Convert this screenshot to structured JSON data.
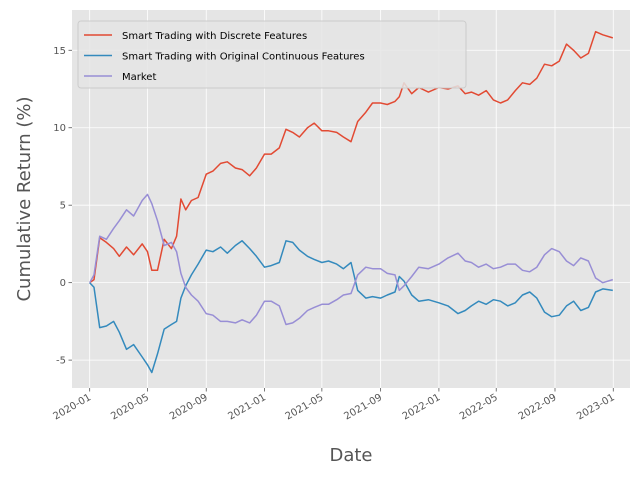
{
  "chart_data": {
    "type": "line",
    "title": "",
    "xlabel": "Date",
    "ylabel": "Cumulative Return (%)",
    "xlim": [
      "2019-11-25",
      "2023-02-05"
    ],
    "ylim": [
      -6.8,
      17.6
    ],
    "grid": true,
    "legend_position": "upper-left",
    "x_ticks": [
      "2020-01",
      "2020-05",
      "2020-09",
      "2021-01",
      "2021-05",
      "2021-09",
      "2022-01",
      "2022-05",
      "2022-09",
      "2023-01"
    ],
    "y_ticks": [
      -5,
      0,
      5,
      10,
      15
    ],
    "colors": {
      "background": "#e5e5e5",
      "grid": "#ffffff"
    },
    "series": [
      {
        "name": "Smart Trading with Discrete Features",
        "color": "#e24a33",
        "points": [
          [
            "2020-01-01",
            0
          ],
          [
            "2020-01-10",
            0.2
          ],
          [
            "2020-01-22",
            2.9
          ],
          [
            "2020-02-05",
            2.6
          ],
          [
            "2020-02-20",
            2.2
          ],
          [
            "2020-03-03",
            1.7
          ],
          [
            "2020-03-18",
            2.3
          ],
          [
            "2020-04-02",
            1.8
          ],
          [
            "2020-04-20",
            2.5
          ],
          [
            "2020-05-01",
            2.0
          ],
          [
            "2020-05-10",
            0.8
          ],
          [
            "2020-05-22",
            0.8
          ],
          [
            "2020-06-05",
            2.8
          ],
          [
            "2020-06-20",
            2.2
          ],
          [
            "2020-07-01",
            3.0
          ],
          [
            "2020-07-10",
            5.4
          ],
          [
            "2020-07-20",
            4.7
          ],
          [
            "2020-08-01",
            5.3
          ],
          [
            "2020-08-15",
            5.5
          ],
          [
            "2020-09-01",
            7.0
          ],
          [
            "2020-09-15",
            7.2
          ],
          [
            "2020-10-01",
            7.7
          ],
          [
            "2020-10-15",
            7.8
          ],
          [
            "2020-11-01",
            7.4
          ],
          [
            "2020-11-15",
            7.3
          ],
          [
            "2020-12-01",
            6.9
          ],
          [
            "2020-12-15",
            7.4
          ],
          [
            "2021-01-01",
            8.3
          ],
          [
            "2021-01-15",
            8.3
          ],
          [
            "2021-02-01",
            8.7
          ],
          [
            "2021-02-15",
            9.9
          ],
          [
            "2021-03-01",
            9.7
          ],
          [
            "2021-03-15",
            9.4
          ],
          [
            "2021-04-01",
            10.0
          ],
          [
            "2021-04-15",
            10.3
          ],
          [
            "2021-05-01",
            9.8
          ],
          [
            "2021-05-15",
            9.8
          ],
          [
            "2021-06-01",
            9.7
          ],
          [
            "2021-06-15",
            9.4
          ],
          [
            "2021-07-01",
            9.1
          ],
          [
            "2021-07-15",
            10.4
          ],
          [
            "2021-08-01",
            11.0
          ],
          [
            "2021-08-15",
            11.6
          ],
          [
            "2021-09-01",
            11.6
          ],
          [
            "2021-09-15",
            11.5
          ],
          [
            "2021-10-01",
            11.7
          ],
          [
            "2021-10-10",
            12.0
          ],
          [
            "2021-10-20",
            12.9
          ],
          [
            "2021-11-05",
            12.2
          ],
          [
            "2021-11-20",
            12.6
          ],
          [
            "2021-12-10",
            12.3
          ],
          [
            "2022-01-01",
            12.6
          ],
          [
            "2022-01-20",
            12.5
          ],
          [
            "2022-02-10",
            12.7
          ],
          [
            "2022-02-25",
            12.2
          ],
          [
            "2022-03-10",
            12.3
          ],
          [
            "2022-03-25",
            12.1
          ],
          [
            "2022-04-10",
            12.4
          ],
          [
            "2022-04-25",
            11.8
          ],
          [
            "2022-05-10",
            11.6
          ],
          [
            "2022-05-25",
            11.8
          ],
          [
            "2022-06-10",
            12.4
          ],
          [
            "2022-06-25",
            12.9
          ],
          [
            "2022-07-10",
            12.8
          ],
          [
            "2022-07-25",
            13.2
          ],
          [
            "2022-08-10",
            14.1
          ],
          [
            "2022-08-25",
            14.0
          ],
          [
            "2022-09-10",
            14.3
          ],
          [
            "2022-09-25",
            15.4
          ],
          [
            "2022-10-10",
            15.0
          ],
          [
            "2022-10-25",
            14.5
          ],
          [
            "2022-11-10",
            14.8
          ],
          [
            "2022-11-25",
            16.2
          ],
          [
            "2022-12-10",
            16.0
          ],
          [
            "2022-12-31",
            15.8
          ]
        ]
      },
      {
        "name": "Smart Trading with Original Continuous Features",
        "color": "#348abd",
        "points": [
          [
            "2020-01-01",
            0
          ],
          [
            "2020-01-10",
            -0.3
          ],
          [
            "2020-01-22",
            -2.9
          ],
          [
            "2020-02-05",
            -2.8
          ],
          [
            "2020-02-20",
            -2.5
          ],
          [
            "2020-03-03",
            -3.2
          ],
          [
            "2020-03-18",
            -4.3
          ],
          [
            "2020-04-02",
            -4.0
          ],
          [
            "2020-04-20",
            -4.8
          ],
          [
            "2020-05-01",
            -5.3
          ],
          [
            "2020-05-10",
            -5.8
          ],
          [
            "2020-05-22",
            -4.6
          ],
          [
            "2020-06-05",
            -3.0
          ],
          [
            "2020-06-20",
            -2.7
          ],
          [
            "2020-07-01",
            -2.5
          ],
          [
            "2020-07-10",
            -1.0
          ],
          [
            "2020-07-20",
            -0.2
          ],
          [
            "2020-08-01",
            0.5
          ],
          [
            "2020-08-15",
            1.2
          ],
          [
            "2020-09-01",
            2.1
          ],
          [
            "2020-09-15",
            2.0
          ],
          [
            "2020-10-01",
            2.3
          ],
          [
            "2020-10-15",
            1.9
          ],
          [
            "2020-11-01",
            2.4
          ],
          [
            "2020-11-15",
            2.7
          ],
          [
            "2020-12-01",
            2.2
          ],
          [
            "2020-12-15",
            1.7
          ],
          [
            "2021-01-01",
            1.0
          ],
          [
            "2021-01-15",
            1.1
          ],
          [
            "2021-02-01",
            1.3
          ],
          [
            "2021-02-15",
            2.7
          ],
          [
            "2021-03-01",
            2.6
          ],
          [
            "2021-03-15",
            2.1
          ],
          [
            "2021-04-01",
            1.7
          ],
          [
            "2021-04-15",
            1.5
          ],
          [
            "2021-05-01",
            1.3
          ],
          [
            "2021-05-15",
            1.4
          ],
          [
            "2021-06-01",
            1.2
          ],
          [
            "2021-06-15",
            0.9
          ],
          [
            "2021-07-01",
            1.3
          ],
          [
            "2021-07-15",
            -0.5
          ],
          [
            "2021-08-01",
            -1.0
          ],
          [
            "2021-08-15",
            -0.9
          ],
          [
            "2021-09-01",
            -1.0
          ],
          [
            "2021-09-15",
            -0.8
          ],
          [
            "2021-10-01",
            -0.6
          ],
          [
            "2021-10-10",
            0.4
          ],
          [
            "2021-10-20",
            0.1
          ],
          [
            "2021-11-05",
            -0.8
          ],
          [
            "2021-11-20",
            -1.2
          ],
          [
            "2021-12-10",
            -1.1
          ],
          [
            "2022-01-01",
            -1.3
          ],
          [
            "2022-01-20",
            -1.5
          ],
          [
            "2022-02-10",
            -2.0
          ],
          [
            "2022-02-25",
            -1.8
          ],
          [
            "2022-03-10",
            -1.5
          ],
          [
            "2022-03-25",
            -1.2
          ],
          [
            "2022-04-10",
            -1.4
          ],
          [
            "2022-04-25",
            -1.1
          ],
          [
            "2022-05-10",
            -1.2
          ],
          [
            "2022-05-25",
            -1.5
          ],
          [
            "2022-06-10",
            -1.3
          ],
          [
            "2022-06-25",
            -0.8
          ],
          [
            "2022-07-10",
            -0.6
          ],
          [
            "2022-07-25",
            -1.0
          ],
          [
            "2022-08-10",
            -1.9
          ],
          [
            "2022-08-25",
            -2.2
          ],
          [
            "2022-09-10",
            -2.1
          ],
          [
            "2022-09-25",
            -1.5
          ],
          [
            "2022-10-10",
            -1.2
          ],
          [
            "2022-10-25",
            -1.8
          ],
          [
            "2022-11-10",
            -1.6
          ],
          [
            "2022-11-25",
            -0.6
          ],
          [
            "2022-12-10",
            -0.4
          ],
          [
            "2022-12-31",
            -0.5
          ]
        ]
      },
      {
        "name": "Market",
        "color": "#988ed5",
        "points": [
          [
            "2020-01-01",
            0
          ],
          [
            "2020-01-10",
            0.5
          ],
          [
            "2020-01-22",
            3.0
          ],
          [
            "2020-02-05",
            2.8
          ],
          [
            "2020-02-20",
            3.5
          ],
          [
            "2020-03-03",
            4.0
          ],
          [
            "2020-03-18",
            4.7
          ],
          [
            "2020-04-02",
            4.3
          ],
          [
            "2020-04-20",
            5.3
          ],
          [
            "2020-05-01",
            5.7
          ],
          [
            "2020-05-10",
            5.1
          ],
          [
            "2020-05-22",
            4.0
          ],
          [
            "2020-06-05",
            2.4
          ],
          [
            "2020-06-20",
            2.6
          ],
          [
            "2020-07-01",
            2.0
          ],
          [
            "2020-07-10",
            0.6
          ],
          [
            "2020-07-20",
            -0.3
          ],
          [
            "2020-08-01",
            -0.8
          ],
          [
            "2020-08-15",
            -1.2
          ],
          [
            "2020-09-01",
            -2.0
          ],
          [
            "2020-09-15",
            -2.1
          ],
          [
            "2020-10-01",
            -2.5
          ],
          [
            "2020-10-15",
            -2.5
          ],
          [
            "2020-11-01",
            -2.6
          ],
          [
            "2020-11-15",
            -2.4
          ],
          [
            "2020-12-01",
            -2.6
          ],
          [
            "2020-12-15",
            -2.1
          ],
          [
            "2021-01-01",
            -1.2
          ],
          [
            "2021-01-15",
            -1.2
          ],
          [
            "2021-02-01",
            -1.5
          ],
          [
            "2021-02-15",
            -2.7
          ],
          [
            "2021-03-01",
            -2.6
          ],
          [
            "2021-03-15",
            -2.3
          ],
          [
            "2021-04-01",
            -1.8
          ],
          [
            "2021-04-15",
            -1.6
          ],
          [
            "2021-05-01",
            -1.4
          ],
          [
            "2021-05-15",
            -1.4
          ],
          [
            "2021-06-01",
            -1.1
          ],
          [
            "2021-06-15",
            -0.8
          ],
          [
            "2021-07-01",
            -0.7
          ],
          [
            "2021-07-15",
            0.5
          ],
          [
            "2021-08-01",
            1.0
          ],
          [
            "2021-08-15",
            0.9
          ],
          [
            "2021-09-01",
            0.9
          ],
          [
            "2021-09-15",
            0.6
          ],
          [
            "2021-10-01",
            0.5
          ],
          [
            "2021-10-10",
            -0.5
          ],
          [
            "2021-10-20",
            -0.2
          ],
          [
            "2021-11-05",
            0.4
          ],
          [
            "2021-11-20",
            1.0
          ],
          [
            "2021-12-10",
            0.9
          ],
          [
            "2022-01-01",
            1.2
          ],
          [
            "2022-01-20",
            1.6
          ],
          [
            "2022-02-10",
            1.9
          ],
          [
            "2022-02-25",
            1.4
          ],
          [
            "2022-03-10",
            1.3
          ],
          [
            "2022-03-25",
            1.0
          ],
          [
            "2022-04-10",
            1.2
          ],
          [
            "2022-04-25",
            0.9
          ],
          [
            "2022-05-10",
            1.0
          ],
          [
            "2022-05-25",
            1.2
          ],
          [
            "2022-06-10",
            1.2
          ],
          [
            "2022-06-25",
            0.8
          ],
          [
            "2022-07-10",
            0.7
          ],
          [
            "2022-07-25",
            1.0
          ],
          [
            "2022-08-10",
            1.8
          ],
          [
            "2022-08-25",
            2.2
          ],
          [
            "2022-09-10",
            2.0
          ],
          [
            "2022-09-25",
            1.4
          ],
          [
            "2022-10-10",
            1.1
          ],
          [
            "2022-10-25",
            1.6
          ],
          [
            "2022-11-10",
            1.4
          ],
          [
            "2022-11-25",
            0.3
          ],
          [
            "2022-12-10",
            0.0
          ],
          [
            "2022-12-31",
            0.2
          ]
        ]
      }
    ]
  }
}
